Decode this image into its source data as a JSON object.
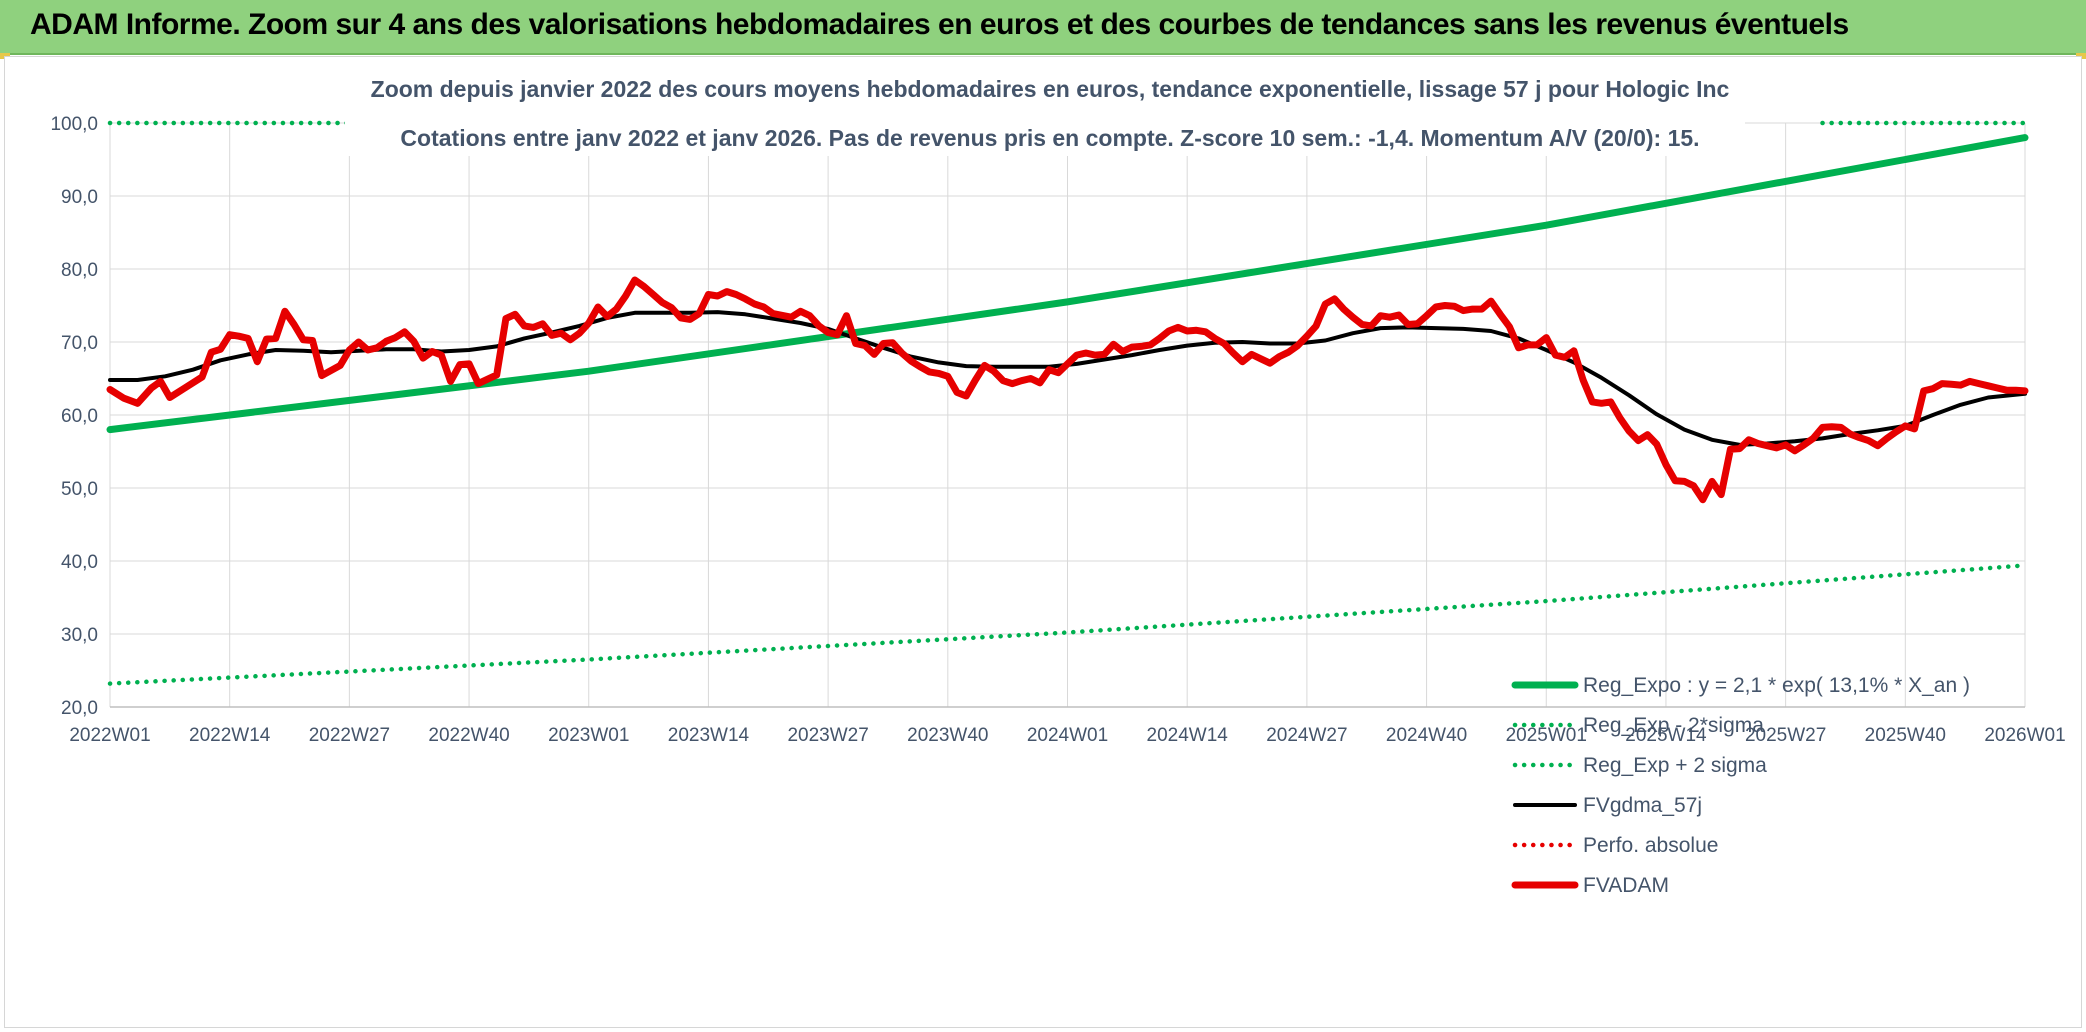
{
  "header": {
    "title": "ADAM Informe. Zoom sur 4 ans des valorisations hebdomadaires en euros et des courbes de tendances sans les revenus éventuels"
  },
  "chart_data": {
    "type": "line",
    "title_line1": "Zoom depuis janvier 2022 des cours moyens hebdomadaires en euros, tendance exponentielle, lissage 57 j pour Hologic Inc",
    "title_line2": "Cotations entre janv 2022 et janv 2026. Pas de revenus pris en compte. Z-score 10 sem.: -1,4. Momentum A/V (20/0): 15.",
    "xlabel": "",
    "ylabel": "",
    "ylim": [
      20,
      100
    ],
    "yticks": [
      "20,0",
      "30,0",
      "40,0",
      "50,0",
      "60,0",
      "70,0",
      "80,0",
      "90,0",
      "100,0"
    ],
    "x_range_weeks": [
      0,
      208
    ],
    "x_ticks": [
      {
        "w": 0,
        "label": "2022W01"
      },
      {
        "w": 13,
        "label": "2022W14"
      },
      {
        "w": 26,
        "label": "2022W27"
      },
      {
        "w": 39,
        "label": "2022W40"
      },
      {
        "w": 52,
        "label": "2023W01"
      },
      {
        "w": 65,
        "label": "2023W14"
      },
      {
        "w": 78,
        "label": "2023W27"
      },
      {
        "w": 91,
        "label": "2023W40"
      },
      {
        "w": 104,
        "label": "2024W01"
      },
      {
        "w": 117,
        "label": "2024W14"
      },
      {
        "w": 130,
        "label": "2024W27"
      },
      {
        "w": 143,
        "label": "2024W40"
      },
      {
        "w": 156,
        "label": "2025W01"
      },
      {
        "w": 169,
        "label": "2025W14"
      },
      {
        "w": 182,
        "label": "2025W27"
      },
      {
        "w": 195,
        "label": "2025W40"
      },
      {
        "w": 208,
        "label": "2026W01"
      }
    ],
    "grid": true,
    "legend_position": "bottom-right",
    "series": [
      {
        "name": "Reg_Expo : y = 2,1 * exp( 13,1% *  X_an )",
        "color": "#00b050",
        "style": "solid-thick",
        "points": [
          [
            0,
            58.0
          ],
          [
            52,
            66.0
          ],
          [
            104,
            75.5
          ],
          [
            156,
            86.0
          ],
          [
            208,
            98.0
          ]
        ]
      },
      {
        "name": "Reg_Exp - 2*sigma",
        "color": "#00b050",
        "style": "dotted",
        "points": [
          [
            0,
            23.2
          ],
          [
            52,
            26.5
          ],
          [
            104,
            30.2
          ],
          [
            156,
            34.5
          ],
          [
            208,
            39.4
          ]
        ]
      },
      {
        "name": "Reg_Exp + 2 sigma",
        "color": "#00b050",
        "style": "dotted",
        "points": [
          [
            0,
            100.0
          ],
          [
            30,
            100.0
          ]
        ],
        "points_b": [
          [
            186,
            100.0
          ],
          [
            208,
            100.0
          ]
        ]
      },
      {
        "name": "FVgdma_57j",
        "color": "#000000",
        "style": "solid",
        "points": [
          [
            0,
            64.8
          ],
          [
            3,
            64.8
          ],
          [
            6,
            65.3
          ],
          [
            9,
            66.2
          ],
          [
            12,
            67.5
          ],
          [
            15,
            68.3
          ],
          [
            18,
            68.9
          ],
          [
            21,
            68.8
          ],
          [
            24,
            68.6
          ],
          [
            27,
            68.8
          ],
          [
            30,
            69.0
          ],
          [
            33,
            69.0
          ],
          [
            36,
            68.7
          ],
          [
            39,
            68.9
          ],
          [
            42,
            69.4
          ],
          [
            45,
            70.5
          ],
          [
            48,
            71.3
          ],
          [
            51,
            72.2
          ],
          [
            54,
            73.3
          ],
          [
            57,
            74.0
          ],
          [
            60,
            74.0
          ],
          [
            63,
            74.0
          ],
          [
            66,
            74.1
          ],
          [
            69,
            73.8
          ],
          [
            72,
            73.2
          ],
          [
            75,
            72.6
          ],
          [
            78,
            71.8
          ],
          [
            81,
            70.5
          ],
          [
            84,
            69.2
          ],
          [
            87,
            68.0
          ],
          [
            90,
            67.2
          ],
          [
            93,
            66.7
          ],
          [
            96,
            66.6
          ],
          [
            99,
            66.6
          ],
          [
            102,
            66.6
          ],
          [
            105,
            67.0
          ],
          [
            108,
            67.6
          ],
          [
            111,
            68.2
          ],
          [
            114,
            68.9
          ],
          [
            117,
            69.5
          ],
          [
            120,
            69.9
          ],
          [
            123,
            70.0
          ],
          [
            126,
            69.8
          ],
          [
            129,
            69.8
          ],
          [
            132,
            70.2
          ],
          [
            135,
            71.2
          ],
          [
            138,
            71.9
          ],
          [
            141,
            72.0
          ],
          [
            144,
            71.9
          ],
          [
            147,
            71.8
          ],
          [
            150,
            71.5
          ],
          [
            153,
            70.5
          ],
          [
            156,
            68.9
          ],
          [
            159,
            67.2
          ],
          [
            162,
            65.1
          ],
          [
            165,
            62.7
          ],
          [
            168,
            60.1
          ],
          [
            171,
            58.0
          ],
          [
            174,
            56.6
          ],
          [
            177,
            55.9
          ],
          [
            180,
            56.1
          ],
          [
            183,
            56.4
          ],
          [
            186,
            56.8
          ],
          [
            189,
            57.4
          ],
          [
            192,
            57.9
          ],
          [
            195,
            58.5
          ],
          [
            198,
            60.0
          ],
          [
            201,
            61.4
          ],
          [
            204,
            62.4
          ],
          [
            208,
            62.9
          ]
        ]
      },
      {
        "name": "Perfo. absolue",
        "color": "#e60000",
        "style": "dotted",
        "points": []
      },
      {
        "name": "FVADAM",
        "color": "#e60000",
        "style": "solid-thick",
        "points": [
          [
            0,
            63.5
          ],
          [
            1.5,
            62.3
          ],
          [
            3,
            61.6
          ],
          [
            4.5,
            63.7
          ],
          [
            5.5,
            64.6
          ],
          [
            6.5,
            62.4
          ],
          [
            8,
            63.6
          ],
          [
            10,
            65.2
          ],
          [
            11,
            68.6
          ],
          [
            12,
            69.0
          ],
          [
            13,
            71.0
          ],
          [
            14,
            70.8
          ],
          [
            15,
            70.5
          ],
          [
            16,
            67.3
          ],
          [
            17,
            70.4
          ],
          [
            18,
            70.5
          ],
          [
            19,
            74.2
          ],
          [
            20,
            72.4
          ],
          [
            21,
            70.3
          ],
          [
            22,
            70.2
          ],
          [
            23,
            65.4
          ],
          [
            25,
            66.8
          ],
          [
            26,
            68.9
          ],
          [
            27,
            70.0
          ],
          [
            28,
            68.9
          ],
          [
            29,
            69.2
          ],
          [
            30,
            70.1
          ],
          [
            31,
            70.6
          ],
          [
            32,
            71.4
          ],
          [
            33,
            70.1
          ],
          [
            34,
            67.8
          ],
          [
            35,
            68.7
          ],
          [
            36,
            68.2
          ],
          [
            37,
            64.6
          ],
          [
            38,
            66.9
          ],
          [
            39,
            67.0
          ],
          [
            40,
            64.3
          ],
          [
            42,
            65.5
          ],
          [
            43,
            73.2
          ],
          [
            44,
            73.8
          ],
          [
            45,
            72.2
          ],
          [
            46,
            72.0
          ],
          [
            47,
            72.5
          ],
          [
            48,
            70.9
          ],
          [
            49,
            71.2
          ],
          [
            50,
            70.3
          ],
          [
            51,
            71.2
          ],
          [
            52,
            72.6
          ],
          [
            53,
            74.8
          ],
          [
            54,
            73.5
          ],
          [
            55,
            74.5
          ],
          [
            56,
            76.3
          ],
          [
            57,
            78.5
          ],
          [
            58,
            77.6
          ],
          [
            59,
            76.5
          ],
          [
            60,
            75.4
          ],
          [
            61,
            74.7
          ],
          [
            62,
            73.3
          ],
          [
            63,
            73.1
          ],
          [
            64,
            73.9
          ],
          [
            65,
            76.5
          ],
          [
            66,
            76.3
          ],
          [
            67,
            76.9
          ],
          [
            68,
            76.5
          ],
          [
            69,
            75.9
          ],
          [
            70,
            75.2
          ],
          [
            71,
            74.8
          ],
          [
            72,
            73.9
          ],
          [
            74,
            73.4
          ],
          [
            75,
            74.2
          ],
          [
            76,
            73.6
          ],
          [
            77,
            72.2
          ],
          [
            78,
            71.3
          ],
          [
            79,
            71.0
          ],
          [
            80,
            73.6
          ],
          [
            81,
            69.8
          ],
          [
            82,
            69.5
          ],
          [
            83,
            68.3
          ],
          [
            84,
            69.8
          ],
          [
            85,
            69.9
          ],
          [
            86,
            68.5
          ],
          [
            87,
            67.4
          ],
          [
            88,
            66.6
          ],
          [
            89,
            65.9
          ],
          [
            90,
            65.7
          ],
          [
            91,
            65.3
          ],
          [
            92,
            63.1
          ],
          [
            93,
            62.6
          ],
          [
            94,
            64.8
          ],
          [
            95,
            66.8
          ],
          [
            96,
            66.0
          ],
          [
            97,
            64.7
          ],
          [
            98,
            64.3
          ],
          [
            99,
            64.7
          ],
          [
            100,
            65.0
          ],
          [
            101,
            64.4
          ],
          [
            102,
            66.2
          ],
          [
            103,
            65.8
          ],
          [
            104,
            67.0
          ],
          [
            105,
            68.2
          ],
          [
            106,
            68.5
          ],
          [
            107,
            68.2
          ],
          [
            108,
            68.3
          ],
          [
            109,
            69.7
          ],
          [
            110,
            68.7
          ],
          [
            111,
            69.3
          ],
          [
            112,
            69.4
          ],
          [
            113,
            69.6
          ],
          [
            114,
            70.5
          ],
          [
            115,
            71.5
          ],
          [
            116,
            72.0
          ],
          [
            117,
            71.5
          ],
          [
            118,
            71.6
          ],
          [
            119,
            71.4
          ],
          [
            120,
            70.5
          ],
          [
            121,
            69.8
          ],
          [
            122,
            68.5
          ],
          [
            123,
            67.3
          ],
          [
            124,
            68.3
          ],
          [
            125,
            67.7
          ],
          [
            126,
            67.1
          ],
          [
            127,
            68.0
          ],
          [
            128,
            68.6
          ],
          [
            129,
            69.5
          ],
          [
            130,
            70.8
          ],
          [
            131,
            72.2
          ],
          [
            132,
            75.2
          ],
          [
            133,
            75.9
          ],
          [
            134,
            74.5
          ],
          [
            135,
            73.4
          ],
          [
            136,
            72.4
          ],
          [
            137,
            72.2
          ],
          [
            138,
            73.6
          ],
          [
            139,
            73.4
          ],
          [
            140,
            73.7
          ],
          [
            141,
            72.4
          ],
          [
            142,
            72.5
          ],
          [
            143,
            73.6
          ],
          [
            144,
            74.8
          ],
          [
            145,
            75.0
          ],
          [
            146,
            74.9
          ],
          [
            147,
            74.3
          ],
          [
            148,
            74.5
          ],
          [
            149,
            74.5
          ],
          [
            150,
            75.6
          ],
          [
            151,
            73.8
          ],
          [
            152,
            72.1
          ],
          [
            153,
            69.2
          ],
          [
            154,
            69.6
          ],
          [
            155,
            69.6
          ],
          [
            156,
            70.6
          ],
          [
            157,
            68.2
          ],
          [
            158,
            67.9
          ],
          [
            159,
            68.8
          ],
          [
            160,
            64.8
          ],
          [
            161,
            61.8
          ],
          [
            162,
            61.6
          ],
          [
            163,
            61.8
          ],
          [
            164,
            59.6
          ],
          [
            165,
            57.8
          ],
          [
            166,
            56.5
          ],
          [
            167,
            57.3
          ],
          [
            168,
            56.0
          ],
          [
            169,
            53.2
          ],
          [
            170,
            51.0
          ],
          [
            171,
            50.9
          ],
          [
            172,
            50.3
          ],
          [
            173,
            48.4
          ],
          [
            174,
            50.9
          ],
          [
            175,
            49.1
          ],
          [
            176,
            55.3
          ],
          [
            177,
            55.4
          ],
          [
            178,
            56.6
          ],
          [
            179,
            56.1
          ],
          [
            180,
            55.8
          ],
          [
            181,
            55.5
          ],
          [
            182,
            55.9
          ],
          [
            183,
            55.1
          ],
          [
            184,
            55.9
          ],
          [
            185,
            56.8
          ],
          [
            186,
            58.3
          ],
          [
            187,
            58.4
          ],
          [
            188,
            58.3
          ],
          [
            189,
            57.4
          ],
          [
            190,
            56.9
          ],
          [
            191,
            56.5
          ],
          [
            192,
            55.8
          ],
          [
            193,
            56.8
          ],
          [
            194,
            57.7
          ],
          [
            195,
            58.5
          ],
          [
            196,
            58.1
          ],
          [
            197,
            63.3
          ],
          [
            198,
            63.6
          ],
          [
            199,
            64.3
          ],
          [
            200,
            64.2
          ],
          [
            201,
            64.1
          ],
          [
            202,
            64.6
          ],
          [
            203,
            64.3
          ],
          [
            204,
            64.0
          ],
          [
            205,
            63.7
          ],
          [
            206,
            63.4
          ],
          [
            207,
            63.4
          ],
          [
            208,
            63.3
          ]
        ]
      }
    ]
  }
}
